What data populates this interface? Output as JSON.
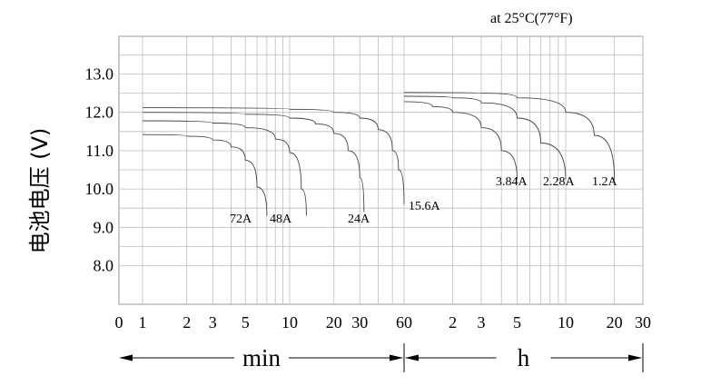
{
  "chart_data": {
    "type": "line",
    "note": "at 25°C(77°F)",
    "ylabel": "电池电压 (V)",
    "yticks": [
      "13.0",
      "12.0",
      "11.0",
      "10.0",
      "9.0",
      "8.0"
    ],
    "ytick_values": [
      13,
      12,
      11,
      10,
      9,
      8
    ],
    "ylim": [
      7.0,
      14.0
    ],
    "x_minutes_ticks": [
      "0",
      "1",
      "2",
      "3",
      "5",
      "10",
      "20",
      "30",
      "60"
    ],
    "x_hours_ticks": [
      "2",
      "3",
      "5",
      "10",
      "20",
      "30"
    ],
    "x_scale": "log",
    "grid": true,
    "ranges": [
      {
        "label": "min"
      },
      {
        "label": "h"
      }
    ],
    "series": [
      {
        "name": "72A",
        "x": [
          1,
          2,
          3,
          4,
          5,
          6,
          7
        ],
        "y": [
          11.42,
          11.38,
          11.28,
          11.1,
          10.75,
          10.05,
          9.3
        ],
        "unit": "min"
      },
      {
        "name": "48A",
        "x": [
          1,
          3,
          5,
          8,
          10,
          12,
          13
        ],
        "y": [
          11.78,
          11.72,
          11.6,
          11.3,
          10.95,
          10.0,
          9.3
        ],
        "unit": "min"
      },
      {
        "name": "24A",
        "x": [
          1,
          5,
          10,
          15,
          20,
          25,
          30,
          32
        ],
        "y": [
          12.0,
          11.95,
          11.85,
          11.7,
          11.45,
          11.0,
          10.3,
          9.4
        ],
        "unit": "min"
      },
      {
        "name": "15.6A",
        "x": [
          1,
          10,
          20,
          30,
          40,
          50,
          55,
          60
        ],
        "y": [
          12.12,
          12.08,
          12.0,
          11.85,
          11.55,
          11.0,
          10.5,
          9.6
        ],
        "unit": "min"
      },
      {
        "name": "3.84A",
        "x": [
          1,
          1.5,
          2,
          3,
          4,
          5
        ],
        "y": [
          12.28,
          12.15,
          12.0,
          11.6,
          11.0,
          10.25
        ],
        "unit": "h"
      },
      {
        "name": "2.28A",
        "x": [
          1,
          2,
          3,
          5,
          7,
          10
        ],
        "y": [
          12.42,
          12.38,
          12.25,
          11.85,
          11.2,
          10.25
        ],
        "unit": "h"
      },
      {
        "name": "1.2A",
        "x": [
          1,
          3,
          5,
          10,
          15,
          20
        ],
        "y": [
          12.52,
          12.5,
          12.38,
          12.0,
          11.4,
          10.25
        ],
        "unit": "h"
      }
    ]
  }
}
